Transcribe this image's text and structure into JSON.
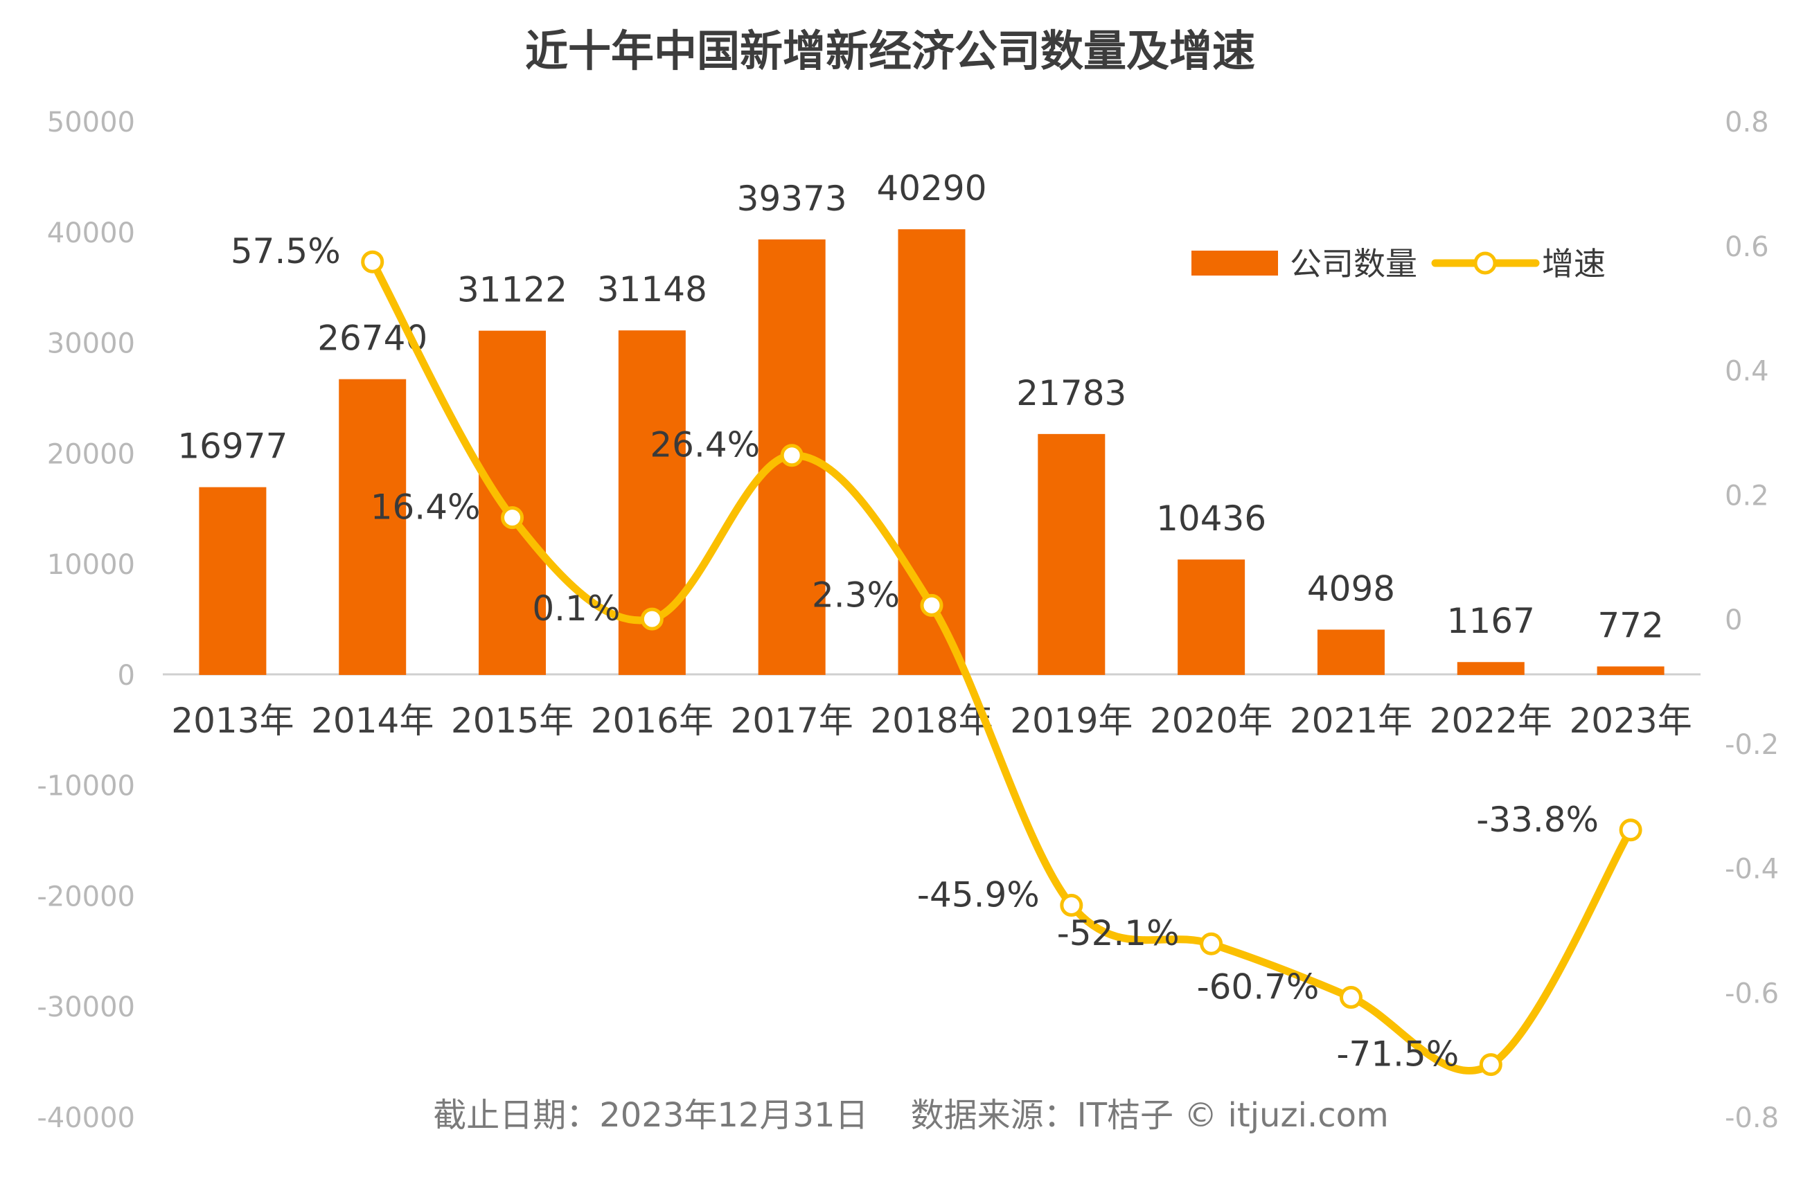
{
  "chart_data": {
    "type": "bar",
    "title": "近十年中国新增新经济公司数量及增速",
    "categories": [
      "2013年",
      "2014年",
      "2015年",
      "2016年",
      "2017年",
      "2018年",
      "2019年",
      "2020年",
      "2021年",
      "2022年",
      "2023年"
    ],
    "series": [
      {
        "name": "公司数量",
        "type": "bar",
        "axis": "left",
        "color": "#f26a00",
        "values": [
          16977,
          26740,
          31122,
          31148,
          39373,
          40290,
          21783,
          10436,
          4098,
          1167,
          772
        ],
        "labels": [
          "16977",
          "26740",
          "31122",
          "31148",
          "39373",
          "40290",
          "21783",
          "10436",
          "4098",
          "1167",
          "772"
        ]
      },
      {
        "name": "增速",
        "type": "line",
        "axis": "right",
        "color": "#fbbf00",
        "values": [
          null,
          0.575,
          0.164,
          0.001,
          0.264,
          0.023,
          -0.459,
          -0.521,
          -0.607,
          -0.715,
          -0.338
        ],
        "labels": [
          "",
          "57.5%",
          "16.4%",
          "0.1%",
          "26.4%",
          "2.3%",
          "-45.9%",
          "-52.1%",
          "-60.7%",
          "-71.5%",
          "-33.8%"
        ]
      }
    ],
    "left_axis": {
      "ylim": [
        -40000,
        50000
      ],
      "ticks": [
        "50000",
        "40000",
        "30000",
        "20000",
        "10000",
        "0",
        "-10000",
        "-20000",
        "-30000",
        "-40000"
      ]
    },
    "right_axis": {
      "ylim": [
        -0.8,
        0.8
      ],
      "ticks": [
        "0.8",
        "0.6",
        "0.4",
        "0.2",
        "0",
        "-0.2",
        "-0.4",
        "-0.6",
        "-0.8"
      ]
    },
    "legend": {
      "position": "top-right",
      "items": [
        "公司数量",
        "增速"
      ]
    },
    "grid": false,
    "footer": "截止日期：2023年12月31日    数据来源：IT桔子 © itjuzi.com"
  }
}
